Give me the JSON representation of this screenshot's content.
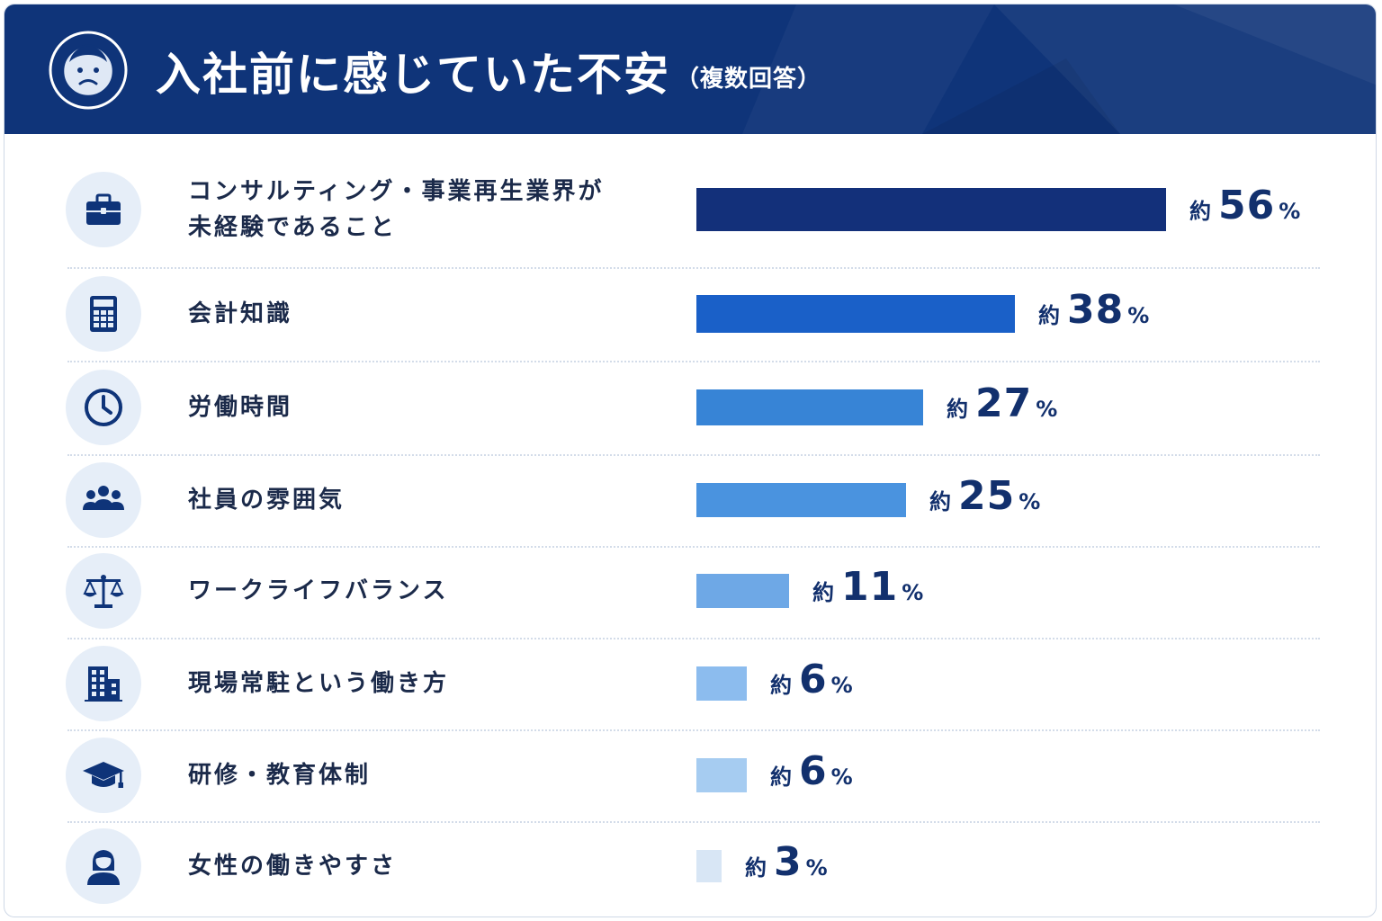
{
  "header": {
    "title": "入社前に感じていた不安",
    "subtitle": "（複数回答）",
    "icon": "worried-face-icon"
  },
  "colors": {
    "header_bg": "#0f3479",
    "text_dark": "#1b2a4a",
    "value_text": "#12306d"
  },
  "chart_data": {
    "type": "bar",
    "orientation": "horizontal",
    "title": "入社前に感じていた不安",
    "subtitle": "（複数回答）",
    "value_prefix": "約",
    "value_suffix": "%",
    "xlim": [
      0,
      100
    ],
    "grid": false,
    "legend": "none",
    "categories": [
      "コンサルティング・事業再生業界が未経験であること",
      "会計知識",
      "労働時間",
      "社員の雰囲気",
      "ワークライフバランス",
      "現場常駐という働き方",
      "研修・教育体制",
      "女性の働きやすさ"
    ],
    "values": [
      56,
      38,
      27,
      25,
      11,
      6,
      6,
      3
    ],
    "bar_colors": [
      "#13307a",
      "#1a60c8",
      "#3784d6",
      "#4a93df",
      "#6ea8e6",
      "#8cbcee",
      "#a6ccf1",
      "#d8e6f5"
    ]
  },
  "rows": [
    {
      "label_lines": [
        "コンサルティング・事業再生業界が",
        "未経験であること"
      ],
      "icon": "briefcase-icon"
    },
    {
      "label_lines": [
        "会計知識"
      ],
      "icon": "calculator-icon"
    },
    {
      "label_lines": [
        "労働時間"
      ],
      "icon": "clock-icon"
    },
    {
      "label_lines": [
        "社員の雰囲気"
      ],
      "icon": "people-icon"
    },
    {
      "label_lines": [
        "ワークライフバランス"
      ],
      "icon": "balance-scale-icon"
    },
    {
      "label_lines": [
        "現場常駐という働き方"
      ],
      "icon": "building-icon"
    },
    {
      "label_lines": [
        "研修・教育体制"
      ],
      "icon": "graduation-cap-icon"
    },
    {
      "label_lines": [
        "女性の働きやすさ"
      ],
      "icon": "woman-icon"
    }
  ]
}
